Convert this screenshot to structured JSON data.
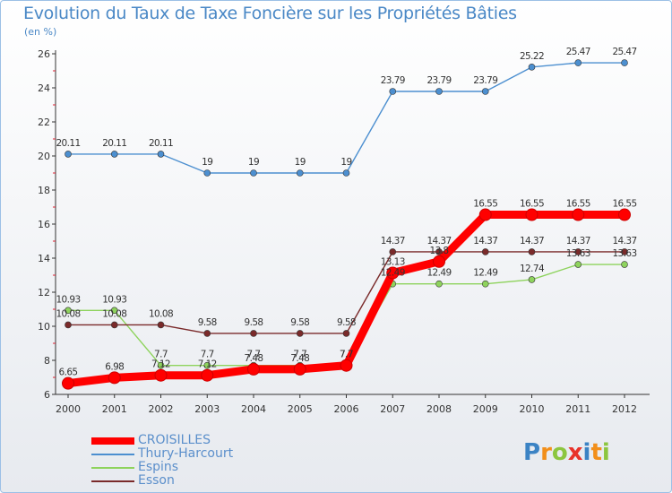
{
  "title": "Evolution du Taux de Taxe Foncière sur les Propriétés Bâties",
  "unit": "(en %)",
  "chart_data": {
    "type": "line",
    "x": [
      "2000",
      "2001",
      "2002",
      "2003",
      "2004",
      "2005",
      "2006",
      "2007",
      "2008",
      "2009",
      "2010",
      "2011",
      "2012"
    ],
    "ylim": [
      6,
      26
    ],
    "yticks": [
      6,
      8,
      10,
      12,
      14,
      16,
      18,
      20,
      22,
      24,
      26
    ],
    "grid": false,
    "legend_position": "bottom-left",
    "series": [
      {
        "name": "CROISILLES",
        "color": "#ff0000",
        "values": [
          6.65,
          6.98,
          7.12,
          7.12,
          7.48,
          7.48,
          7.7,
          13.13,
          13.8,
          16.55,
          16.55,
          16.55,
          16.55
        ],
        "labels": [
          "6.65",
          "6.98",
          "7.12",
          "7.12",
          "7.48",
          "7.48",
          "7.7",
          "13.13",
          "13.8",
          "16.55",
          "16.55",
          "16.55",
          "16.55"
        ]
      },
      {
        "name": "Thury-Harcourt",
        "color": "#4c8fd0",
        "values": [
          20.11,
          20.11,
          20.11,
          19,
          19,
          19,
          19,
          23.79,
          23.79,
          23.79,
          25.22,
          25.47,
          25.47
        ],
        "labels": [
          "20.11",
          "20.11",
          "20.11",
          "19",
          "19",
          "19",
          "19",
          "23.79",
          "23.79",
          "23.79",
          "25.22",
          "25.47",
          "25.47"
        ]
      },
      {
        "name": "Espins",
        "color": "#8ed35d",
        "values": [
          10.93,
          10.93,
          7.7,
          7.7,
          7.7,
          7.7,
          7.7,
          12.49,
          12.49,
          12.49,
          12.74,
          13.63,
          13.63
        ],
        "labels": [
          "10.93",
          "10.93",
          "7.7",
          "7.7",
          "7.7",
          "7.7",
          "7.7",
          "12.49",
          "12.49",
          "12.49",
          "12.74",
          "13.63",
          "13.63"
        ]
      },
      {
        "name": "Esson",
        "color": "#7a2a2a",
        "values": [
          10.08,
          10.08,
          10.08,
          9.58,
          9.58,
          9.58,
          9.58,
          14.37,
          14.37,
          14.37,
          14.37,
          14.37,
          14.37
        ],
        "labels": [
          "10.08",
          "10.08",
          "10.08",
          "9.58",
          "9.58",
          "9.58",
          "9.58",
          "14.37",
          "14.37",
          "14.37",
          "14.37",
          "14.37",
          "14.37"
        ]
      }
    ]
  },
  "logo": {
    "text": "Proxiti",
    "letters": [
      {
        "ch": "P",
        "color": "#3b83c4"
      },
      {
        "ch": "r",
        "color": "#f28f1a"
      },
      {
        "ch": "o",
        "color": "#8cc63f"
      },
      {
        "ch": "x",
        "color": "#e8332a"
      },
      {
        "ch": "i",
        "color": "#3b83c4"
      },
      {
        "ch": "t",
        "color": "#f28f1a"
      },
      {
        "ch": "i",
        "color": "#8cc63f"
      }
    ]
  }
}
